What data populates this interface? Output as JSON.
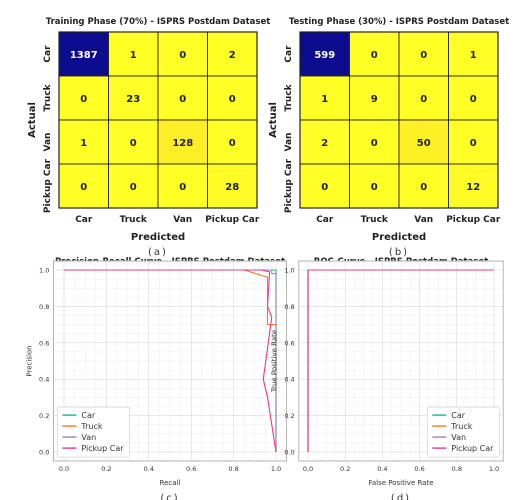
{
  "chart_data": [
    {
      "type": "heatmap",
      "panel": "(a)",
      "title": "Training Phase (70%) - ISPRS Postdam Dataset",
      "xlabel": "Predicted",
      "ylabel": "Actual",
      "categories": [
        "Car",
        "Truck",
        "Van",
        "Pickup Car"
      ],
      "matrix": [
        [
          1387,
          1,
          0,
          2
        ],
        [
          0,
          23,
          0,
          0
        ],
        [
          1,
          0,
          128,
          0
        ],
        [
          0,
          0,
          0,
          28
        ]
      ],
      "colors": {
        "high": "#0c0c8f",
        "mid": "#f6a623",
        "low": "#ffff26"
      }
    },
    {
      "type": "heatmap",
      "panel": "(b)",
      "title": "Testing Phase (30%) - ISPRS Postdam Dataset",
      "xlabel": "Predicted",
      "ylabel": "Actual",
      "categories": [
        "Car",
        "Truck",
        "Van",
        "Pickup Car"
      ],
      "matrix": [
        [
          599,
          0,
          0,
          1
        ],
        [
          1,
          9,
          0,
          0
        ],
        [
          2,
          0,
          50,
          0
        ],
        [
          0,
          0,
          0,
          12
        ]
      ],
      "colors": {
        "high": "#0c0c8f",
        "mid": "#f6a623",
        "low": "#ffff26"
      }
    },
    {
      "type": "line",
      "panel": "(c)",
      "title": "Precision-Recall Curve - ISPRS Postdam Dataset",
      "xlabel": "Recall",
      "ylabel": "Precision",
      "xlim": [
        0,
        1
      ],
      "ylim": [
        0,
        1
      ],
      "xticks": [
        "0.0",
        "0.2",
        "0.4",
        "0.6",
        "0.8",
        "1.0"
      ],
      "yticks": [
        "0.0",
        "0.2",
        "0.4",
        "0.6",
        "0.8",
        "1.0"
      ],
      "grid": true,
      "legend_position": "lower-left",
      "series": [
        {
          "name": "Car",
          "color": "#1fb08a",
          "x": [
            0,
            0.998,
            0.999,
            1.0,
            1.0
          ],
          "y": [
            1,
            1,
            1,
            0.998,
            0
          ]
        },
        {
          "name": "Truck",
          "color": "#f07a26",
          "x": [
            0,
            0.85,
            0.96,
            0.96,
            1.0,
            1.0
          ],
          "y": [
            1,
            1,
            0.96,
            0.7,
            0.7,
            0
          ]
        },
        {
          "name": "Van",
          "color": "#8e88c0",
          "x": [
            0,
            0.98,
            0.98,
            1.0,
            1.0
          ],
          "y": [
            1,
            1,
            0.98,
            0.98,
            0
          ]
        },
        {
          "name": "Pickup Car",
          "color": "#e8388a",
          "x": [
            0,
            0.93,
            0.97,
            0.96,
            0.98,
            0.94,
            0.96,
            1.0
          ],
          "y": [
            1,
            1,
            0.99,
            0.8,
            0.74,
            0.4,
            0.3,
            0
          ]
        }
      ]
    },
    {
      "type": "line",
      "panel": "(d)",
      "title": "ROC-Curve - ISPRS Postdam Dataset",
      "xlabel": "False Positive Rate",
      "ylabel": "True Positive Rate",
      "xlim": [
        0,
        1
      ],
      "ylim": [
        0,
        1
      ],
      "xticks": [
        "0.0",
        "0.2",
        "0.4",
        "0.6",
        "0.8",
        "1.0"
      ],
      "yticks": [
        "0.0",
        "0.2",
        "0.4",
        "0.6",
        "0.8",
        "1.0"
      ],
      "grid": true,
      "legend_position": "lower-right",
      "series": [
        {
          "name": "Car",
          "color": "#1fb08a",
          "x": [
            0,
            0,
            0.002,
            1
          ],
          "y": [
            0,
            0.995,
            1,
            1
          ]
        },
        {
          "name": "Truck",
          "color": "#f07a26",
          "x": [
            0,
            0,
            1
          ],
          "y": [
            0,
            1,
            1
          ]
        },
        {
          "name": "Van",
          "color": "#8e88c0",
          "x": [
            0,
            0,
            1
          ],
          "y": [
            0,
            1,
            1
          ]
        },
        {
          "name": "Pickup Car",
          "color": "#e8388a",
          "x": [
            0,
            0,
            1
          ],
          "y": [
            0,
            1,
            1
          ]
        }
      ]
    }
  ]
}
